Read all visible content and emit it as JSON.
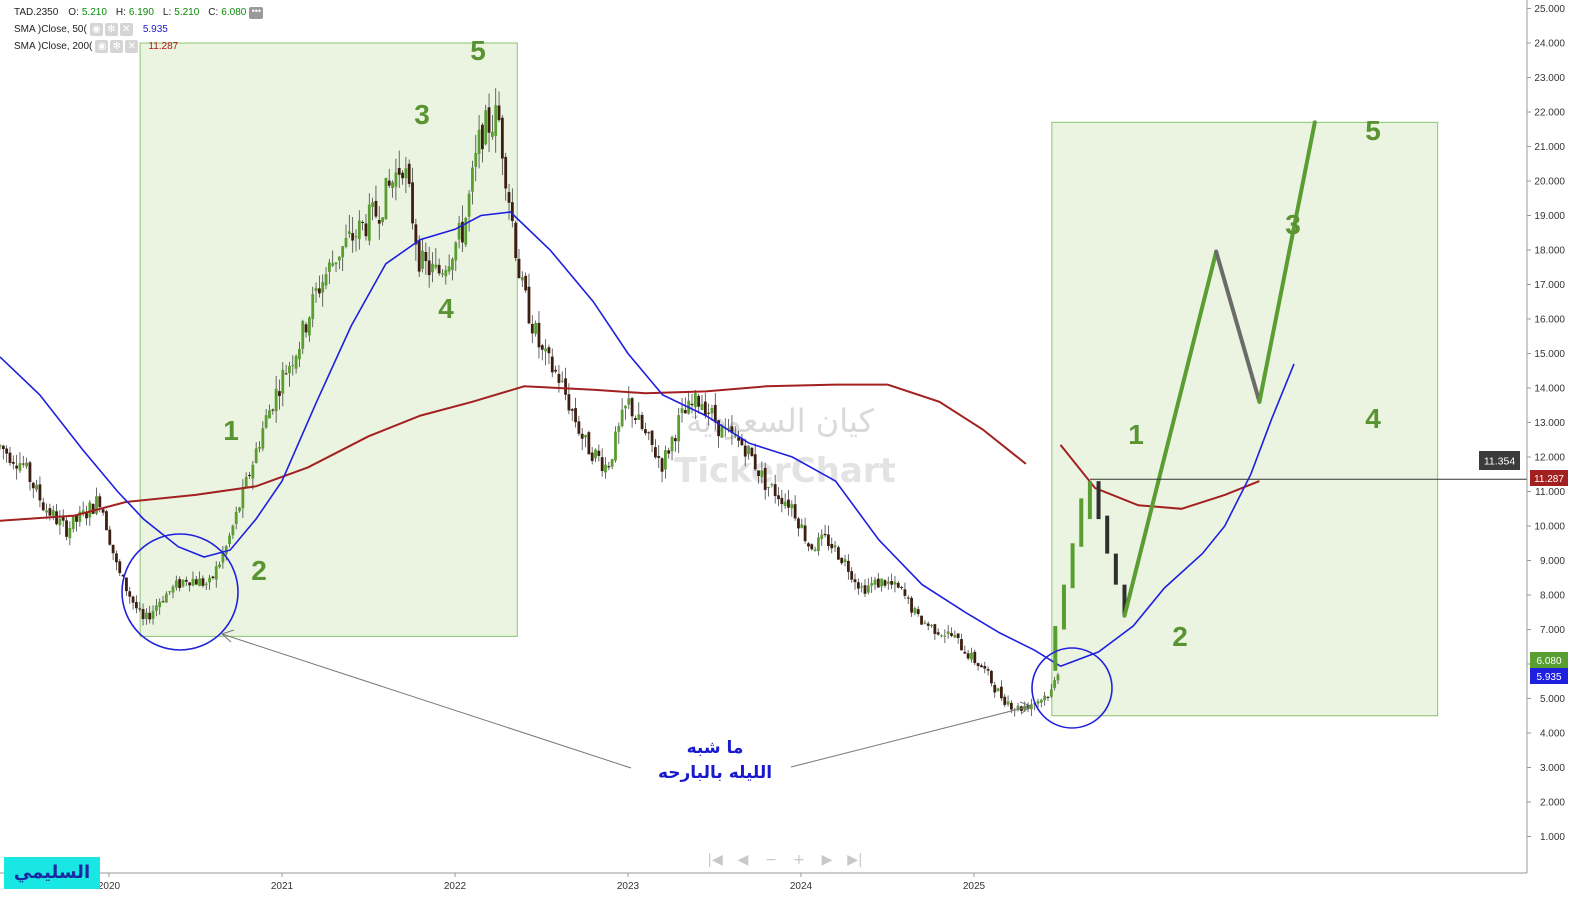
{
  "legend": {
    "symbol": "TAD.2350",
    "o_label": "O:",
    "o_value": "5.210",
    "h_label": "H:",
    "h_value": "6.190",
    "l_label": "L:",
    "l_value": "5.210",
    "c_label": "C:",
    "c_value": "6.080",
    "sma50_label": "SMA  )Close, 50(",
    "sma50_value": "5.935",
    "sma200_label": "SMA  )Close, 200(",
    "sma200_value": "11.287"
  },
  "colors": {
    "up": "#5a9e32",
    "down": "#3d1f12",
    "sma50": "#1f1fe0",
    "sma200": "#a32020",
    "box_fill": "#e6f2dc",
    "box_stroke": "#8cc570",
    "wave_label": "#5a9432",
    "annotation": "#1a1acc"
  },
  "annotations": {
    "watermark_text": "كيان السعودية",
    "watermark_brand": "TickerChart",
    "note_line1": "ما شبه",
    "note_line2": "الليله بالبارحه",
    "logo_text": "السليمي",
    "past_waves": [
      "1",
      "2",
      "3",
      "4",
      "5"
    ],
    "future_waves": [
      "1",
      "2",
      "3",
      "4",
      "5"
    ],
    "hline_label": "11.354"
  },
  "price_labels": {
    "sma200": "11.287",
    "close": "6.080",
    "sma50": "5.935"
  },
  "nav": [
    "|◀",
    "◀",
    "−",
    "+",
    "▶",
    "▶|"
  ],
  "chart_data": {
    "type": "candlestick",
    "symbol": "TAD.2350",
    "x_ticks": [
      "2020",
      "2021",
      "2022",
      "2023",
      "2024",
      "2025"
    ],
    "y_ticks": [
      "1.000",
      "2.000",
      "3.000",
      "4.000",
      "5.000",
      "6.000",
      "7.000",
      "8.000",
      "9.000",
      "10.000",
      "11.000",
      "12.000",
      "13.000",
      "14.000",
      "15.000",
      "16.000",
      "17.000",
      "18.000",
      "19.000",
      "20.000",
      "21.000",
      "22.000",
      "23.000",
      "24.000",
      "25.000"
    ],
    "ylim": [
      0,
      25
    ],
    "xlim": [
      2019.37,
      2026.6
    ],
    "path_close": [
      [
        2019.37,
        12.3
      ],
      [
        2019.5,
        11.8
      ],
      [
        2019.62,
        10.6
      ],
      [
        2019.75,
        9.9
      ],
      [
        2019.85,
        10.3
      ],
      [
        2019.95,
        10.8
      ],
      [
        2020.05,
        8.7
      ],
      [
        2020.2,
        7.2
      ],
      [
        2020.3,
        7.9
      ],
      [
        2020.45,
        8.5
      ],
      [
        2020.58,
        8.3
      ],
      [
        2020.68,
        9.4
      ],
      [
        2020.78,
        11.0
      ],
      [
        2020.9,
        13.0
      ],
      [
        2021.0,
        14.3
      ],
      [
        2021.1,
        15.3
      ],
      [
        2021.2,
        16.8
      ],
      [
        2021.32,
        17.9
      ],
      [
        2021.45,
        18.6
      ],
      [
        2021.55,
        19.1
      ],
      [
        2021.7,
        20.6
      ],
      [
        2021.8,
        17.6
      ],
      [
        2021.9,
        17.3
      ],
      [
        2022.05,
        18.6
      ],
      [
        2022.15,
        21.4
      ],
      [
        2022.25,
        21.9
      ],
      [
        2022.38,
        17.0
      ],
      [
        2022.5,
        15.0
      ],
      [
        2022.6,
        14.3
      ],
      [
        2022.75,
        12.4
      ],
      [
        2022.88,
        11.7
      ],
      [
        2023.0,
        13.6
      ],
      [
        2023.1,
        12.6
      ],
      [
        2023.2,
        11.8
      ],
      [
        2023.3,
        13.1
      ],
      [
        2023.42,
        13.7
      ],
      [
        2023.55,
        12.7
      ],
      [
        2023.68,
        12.3
      ],
      [
        2023.8,
        11.2
      ],
      [
        2023.95,
        10.6
      ],
      [
        2024.05,
        9.4
      ],
      [
        2024.15,
        9.6
      ],
      [
        2024.25,
        9.0
      ],
      [
        2024.35,
        8.2
      ],
      [
        2024.48,
        8.4
      ],
      [
        2024.58,
        8.1
      ],
      [
        2024.68,
        7.3
      ],
      [
        2024.78,
        7.0
      ],
      [
        2024.88,
        6.8
      ],
      [
        2024.98,
        6.2
      ],
      [
        2025.05,
        5.9
      ],
      [
        2025.15,
        5.1
      ],
      [
        2025.25,
        4.7
      ],
      [
        2025.35,
        4.9
      ],
      [
        2025.45,
        5.2
      ],
      [
        2025.5,
        6.08
      ]
    ],
    "sma50": [
      [
        2019.37,
        14.9
      ],
      [
        2019.6,
        13.8
      ],
      [
        2019.85,
        12.2
      ],
      [
        2020.05,
        11.0
      ],
      [
        2020.2,
        10.2
      ],
      [
        2020.4,
        9.4
      ],
      [
        2020.55,
        9.1
      ],
      [
        2020.7,
        9.3
      ],
      [
        2020.85,
        10.2
      ],
      [
        2021.0,
        11.3
      ],
      [
        2021.2,
        13.6
      ],
      [
        2021.4,
        15.8
      ],
      [
        2021.6,
        17.6
      ],
      [
        2021.8,
        18.3
      ],
      [
        2022.0,
        18.6
      ],
      [
        2022.15,
        19.0
      ],
      [
        2022.32,
        19.1
      ],
      [
        2022.55,
        18.0
      ],
      [
        2022.8,
        16.5
      ],
      [
        2023.0,
        15.0
      ],
      [
        2023.2,
        13.8
      ],
      [
        2023.45,
        13.2
      ],
      [
        2023.7,
        12.4
      ],
      [
        2023.95,
        12.0
      ],
      [
        2024.2,
        11.3
      ],
      [
        2024.45,
        9.6
      ],
      [
        2024.7,
        8.3
      ],
      [
        2024.95,
        7.5
      ],
      [
        2025.15,
        6.9
      ],
      [
        2025.35,
        6.4
      ],
      [
        2025.5,
        5.935
      ]
    ],
    "sma200": [
      [
        2019.37,
        10.15
      ],
      [
        2019.8,
        10.3
      ],
      [
        2020.1,
        10.7
      ],
      [
        2020.5,
        10.9
      ],
      [
        2020.85,
        11.15
      ],
      [
        2021.15,
        11.7
      ],
      [
        2021.5,
        12.6
      ],
      [
        2021.8,
        13.2
      ],
      [
        2022.1,
        13.6
      ],
      [
        2022.4,
        14.05
      ],
      [
        2022.8,
        13.95
      ],
      [
        2023.1,
        13.85
      ],
      [
        2023.45,
        13.9
      ],
      [
        2023.8,
        14.05
      ],
      [
        2024.2,
        14.1
      ],
      [
        2024.5,
        14.1
      ],
      [
        2024.8,
        13.6
      ],
      [
        2025.05,
        12.8
      ],
      [
        2025.3,
        11.8
      ],
      [
        2025.6,
        10.85
      ],
      [
        2025.9,
        10.55
      ],
      [
        2026.05,
        10.5
      ],
      [
        2026.2,
        10.6
      ],
      [
        2026.4,
        10.85
      ],
      [
        2026.6,
        11.287
      ]
    ],
    "projection": {
      "sma50_projection": [
        [
          2025.5,
          5.935
        ],
        [
          2025.72,
          6.35
        ],
        [
          2025.92,
          7.1
        ],
        [
          2026.1,
          8.2
        ],
        [
          2026.32,
          9.2
        ],
        [
          2026.45,
          10.0
        ],
        [
          2026.6,
          11.5
        ],
        [
          2026.72,
          13.1
        ],
        [
          2026.85,
          14.7
        ]
      ],
      "sma200_projection": [
        [
          2025.5,
          12.35
        ],
        [
          2025.7,
          11.1
        ],
        [
          2025.95,
          10.6
        ],
        [
          2026.2,
          10.5
        ],
        [
          2026.45,
          10.9
        ],
        [
          2026.65,
          11.3
        ]
      ],
      "bars_up": [
        [
          2025.47,
          5.8,
          7.1
        ],
        [
          2025.52,
          7.0,
          8.3
        ],
        [
          2025.57,
          8.2,
          9.5
        ],
        [
          2025.62,
          9.4,
          10.8
        ],
        [
          2025.67,
          10.2,
          11.3
        ]
      ],
      "bars_down": [
        [
          2025.72,
          11.3,
          10.2
        ],
        [
          2025.77,
          10.3,
          9.2
        ],
        [
          2025.82,
          9.2,
          8.3
        ],
        [
          2025.87,
          8.3,
          7.4
        ]
      ],
      "path": [
        [
          2025.87,
          7.4
        ],
        [
          2026.4,
          17.95
        ],
        [
          2026.65,
          13.6
        ],
        [
          2026.97,
          21.7
        ]
      ],
      "hline": 11.354
    },
    "boxes": [
      {
        "x0": 2020.18,
        "x1": 2022.36,
        "y0": 6.8,
        "y1": 24.0
      },
      {
        "x0": 2025.45,
        "x1": 2027.68,
        "y0": 4.5,
        "y1": 21.7
      }
    ]
  }
}
